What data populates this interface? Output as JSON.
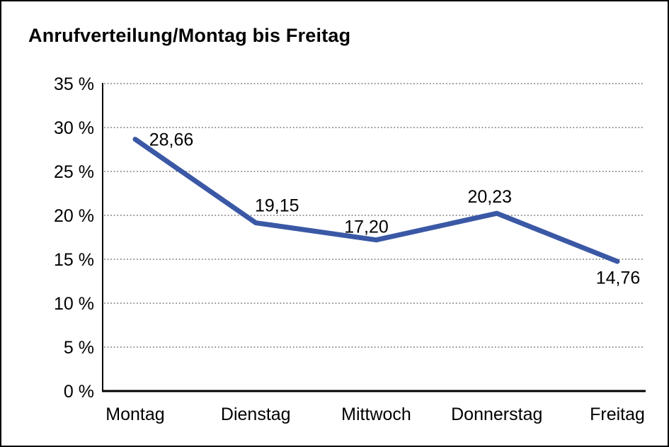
{
  "page": {
    "background_color": "#ffffff",
    "frame_border_color": "#000000"
  },
  "chart_data": {
    "type": "line",
    "title": "Anrufverteilung/Montag bis Freitag",
    "categories": [
      "Montag",
      "Dienstag",
      "Mittwoch",
      "Donnerstag",
      "Freitag"
    ],
    "values": [
      28.66,
      19.15,
      17.2,
      20.23,
      14.76
    ],
    "value_labels": [
      "28,66",
      "19,15",
      "17,20",
      "20,23",
      "14,76"
    ],
    "xlabel": "",
    "ylabel": "",
    "ylim": [
      0,
      35
    ],
    "ytick_step": 5,
    "ytick_labels": [
      "0 %",
      "5 %",
      "10 %",
      "15 %",
      "20 %",
      "25 %",
      "30 %",
      "35 %"
    ],
    "grid": "horizontal-dotted",
    "legend_position": "none",
    "series_color": "#3A58A5",
    "gridline_color": "#787878",
    "axis_color": "#000000",
    "label_color": "#000000"
  }
}
